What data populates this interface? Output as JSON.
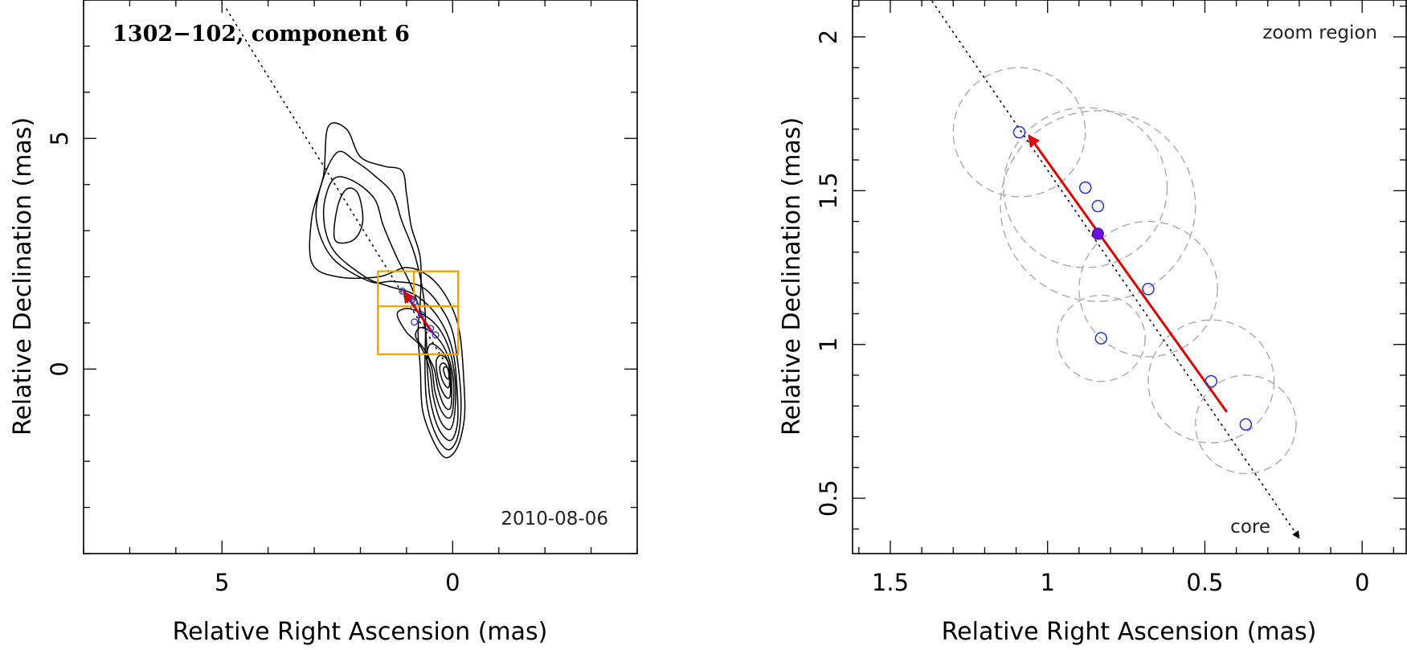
{
  "chart_data": [
    {
      "type": "scatter",
      "panel": "left",
      "title": "1302−102, component 6",
      "date": "2010-08-06",
      "xlabel": "Relative Right Ascension (mas)",
      "ylabel": "Relative Declination (mas)",
      "xlim": [
        8.0,
        -4.0
      ],
      "ylim": [
        -4.0,
        8.0
      ],
      "x_major_ticks": [
        5,
        0
      ],
      "x_tick_labels": [
        "5",
        "0"
      ],
      "y_major_ticks": [
        5,
        0
      ],
      "y_tick_labels": [
        "5",
        "0"
      ],
      "minor_step": 1,
      "colors": {
        "contour": "#000000",
        "components": "#2233dd",
        "vector": "#dd0000",
        "box": "#f5a000",
        "track": "#000000"
      },
      "contour_levels": [
        [
          [
            0.7,
            0.0
          ],
          [
            0.65,
            -0.9
          ],
          [
            0.4,
            -1.6
          ],
          [
            0.15,
            -1.92
          ],
          [
            -0.1,
            -1.7
          ],
          [
            -0.25,
            -1.1
          ],
          [
            -0.25,
            -0.4
          ],
          [
            -0.15,
            0.8
          ],
          [
            0.1,
            1.5
          ],
          [
            0.5,
            2.0
          ],
          [
            1.0,
            2.2
          ],
          [
            1.6,
            2.0
          ],
          [
            2.5,
            2.0
          ],
          [
            3.05,
            2.3
          ],
          [
            3.05,
            3.3
          ],
          [
            2.8,
            4.2
          ],
          [
            2.7,
            5.25
          ],
          [
            2.3,
            5.2
          ],
          [
            2.0,
            4.6
          ],
          [
            1.5,
            4.4
          ],
          [
            1.1,
            4.3
          ],
          [
            1.0,
            3.8
          ],
          [
            0.9,
            3.1
          ],
          [
            0.7,
            2.4
          ],
          [
            0.7,
            1.5
          ],
          [
            0.75,
            0.8
          ]
        ],
        [
          [
            0.6,
            0.0
          ],
          [
            0.55,
            -0.8
          ],
          [
            0.35,
            -1.45
          ],
          [
            0.1,
            -1.75
          ],
          [
            -0.1,
            -1.5
          ],
          [
            -0.18,
            -0.9
          ],
          [
            -0.15,
            -0.2
          ],
          [
            0.0,
            0.8
          ],
          [
            0.3,
            1.4
          ],
          [
            0.7,
            1.8
          ],
          [
            1.3,
            1.9
          ],
          [
            1.8,
            1.9
          ],
          [
            2.6,
            2.4
          ],
          [
            2.95,
            3.2
          ],
          [
            2.85,
            4.0
          ],
          [
            2.5,
            4.7
          ],
          [
            2.1,
            4.5
          ],
          [
            1.7,
            4.2
          ],
          [
            1.3,
            3.8
          ],
          [
            1.1,
            3.2
          ],
          [
            0.8,
            2.4
          ],
          [
            0.6,
            1.3
          ]
        ],
        [
          [
            0.55,
            0.0
          ],
          [
            0.48,
            -0.7
          ],
          [
            0.3,
            -1.3
          ],
          [
            0.05,
            -1.55
          ],
          [
            -0.1,
            -1.2
          ],
          [
            -0.1,
            -0.5
          ],
          [
            0.0,
            0.4
          ],
          [
            0.3,
            1.1
          ],
          [
            0.8,
            1.6
          ],
          [
            1.4,
            1.8
          ],
          [
            1.9,
            2.0
          ],
          [
            2.6,
            2.6
          ],
          [
            2.8,
            3.4
          ],
          [
            2.6,
            4.1
          ],
          [
            2.2,
            4.1
          ],
          [
            1.7,
            3.7
          ],
          [
            1.5,
            3.1
          ],
          [
            1.2,
            2.4
          ],
          [
            0.9,
            1.8
          ],
          [
            0.6,
            0.9
          ]
        ],
        [
          [
            0.5,
            0.0
          ],
          [
            0.42,
            -0.6
          ],
          [
            0.25,
            -1.15
          ],
          [
            0.05,
            -1.3
          ],
          [
            -0.05,
            -0.9
          ],
          [
            -0.05,
            -0.2
          ],
          [
            0.1,
            0.5
          ],
          [
            0.4,
            1.0
          ],
          [
            0.9,
            1.3
          ],
          [
            1.2,
            1.2
          ],
          [
            1.0,
            0.8
          ],
          [
            0.7,
            0.5
          ]
        ],
        [
          [
            2.55,
            2.8
          ],
          [
            2.5,
            3.5
          ],
          [
            2.3,
            3.9
          ],
          [
            2.05,
            3.8
          ],
          [
            1.95,
            3.2
          ],
          [
            2.15,
            2.8
          ]
        ],
        [
          [
            0.45,
            0.0
          ],
          [
            0.38,
            -0.5
          ],
          [
            0.22,
            -0.95
          ],
          [
            0.05,
            -1.05
          ],
          [
            -0.02,
            -0.7
          ],
          [
            0.0,
            -0.1
          ],
          [
            0.15,
            0.4
          ],
          [
            0.4,
            0.75
          ],
          [
            0.7,
            0.9
          ],
          [
            0.8,
            0.7
          ],
          [
            0.6,
            0.4
          ]
        ],
        [
          [
            0.4,
            0.0
          ],
          [
            0.32,
            -0.42
          ],
          [
            0.18,
            -0.8
          ],
          [
            0.05,
            -0.85
          ],
          [
            0.02,
            -0.5
          ],
          [
            0.05,
            0.0
          ],
          [
            0.2,
            0.35
          ],
          [
            0.45,
            0.55
          ],
          [
            0.55,
            0.35
          ]
        ],
        [
          [
            0.35,
            0.0
          ],
          [
            0.28,
            -0.35
          ],
          [
            0.15,
            -0.6
          ],
          [
            0.06,
            -0.6
          ],
          [
            0.05,
            -0.3
          ],
          [
            0.1,
            0.15
          ],
          [
            0.25,
            0.3
          ],
          [
            0.35,
            0.2
          ]
        ],
        [
          [
            0.28,
            0.0
          ],
          [
            0.22,
            -0.25
          ],
          [
            0.12,
            -0.4
          ],
          [
            0.07,
            -0.35
          ],
          [
            0.08,
            -0.1
          ],
          [
            0.15,
            0.1
          ],
          [
            0.24,
            0.12
          ]
        ],
        [
          [
            0.2,
            0.0
          ],
          [
            0.16,
            -0.15
          ],
          [
            0.1,
            -0.22
          ],
          [
            0.08,
            -0.15
          ],
          [
            0.1,
            0.0
          ],
          [
            0.15,
            0.05
          ]
        ]
      ],
      "components": {
        "x": [
          1.09,
          0.88,
          0.84,
          0.83,
          0.68,
          0.48,
          0.37
        ],
        "y": [
          1.69,
          1.51,
          1.45,
          1.02,
          1.18,
          0.88,
          0.74
        ]
      },
      "mean_position": {
        "x": 0.84,
        "y": 1.36
      },
      "velocity_vector": {
        "from": [
          0.43,
          0.78
        ],
        "to": [
          1.06,
          1.68
        ]
      },
      "track_line": {
        "from": [
          4.9,
          7.8
        ],
        "to": [
          0.2,
          0.2
        ]
      },
      "zoom_boxes": [
        {
          "x": [
            1.62,
            -0.12
          ],
          "y": [
            0.32,
            2.12
          ]
        },
        {
          "x": [
            1.62,
            -0.12
          ],
          "y": [
            0.32,
            1.36
          ]
        },
        {
          "x": [
            0.84,
            -0.12
          ],
          "y": [
            1.36,
            2.12
          ]
        }
      ]
    },
    {
      "type": "scatter",
      "panel": "right",
      "title": "zoom region",
      "core_label": "core",
      "xlabel": "Relative Right Ascension (mas)",
      "ylabel": "Relative Declination (mas)",
      "xlim": [
        1.62,
        -0.14
      ],
      "ylim": [
        0.32,
        2.12
      ],
      "x_major_ticks": [
        1.5,
        1,
        0.5,
        0
      ],
      "x_tick_labels": [
        "1.5",
        "1",
        "0.5",
        "0"
      ],
      "y_major_ticks": [
        0.5,
        1,
        1.5,
        2
      ],
      "y_tick_labels": [
        "0.5",
        "1",
        "1.5",
        "2"
      ],
      "minor_step": 0.1,
      "colors": {
        "components": "#2233dd",
        "mean": "#6611dd",
        "vector": "#dd0000",
        "error_circles": "#aaaaaa",
        "track": "#000000"
      },
      "components": {
        "x": [
          1.09,
          0.88,
          0.84,
          0.83,
          0.68,
          0.48,
          0.37
        ],
        "y": [
          1.69,
          1.51,
          1.45,
          1.02,
          1.18,
          0.88,
          0.74
        ]
      },
      "error_radius": [
        0.21,
        0.26,
        0.31,
        0.14,
        0.22,
        0.2,
        0.16
      ],
      "mean_position": {
        "x": 0.84,
        "y": 1.36
      },
      "velocity_vector": {
        "from": [
          0.43,
          0.78
        ],
        "to": [
          1.06,
          1.68
        ]
      },
      "track_line": {
        "from": [
          1.41,
          2.18
        ],
        "to": [
          0.2,
          0.37
        ]
      }
    }
  ]
}
